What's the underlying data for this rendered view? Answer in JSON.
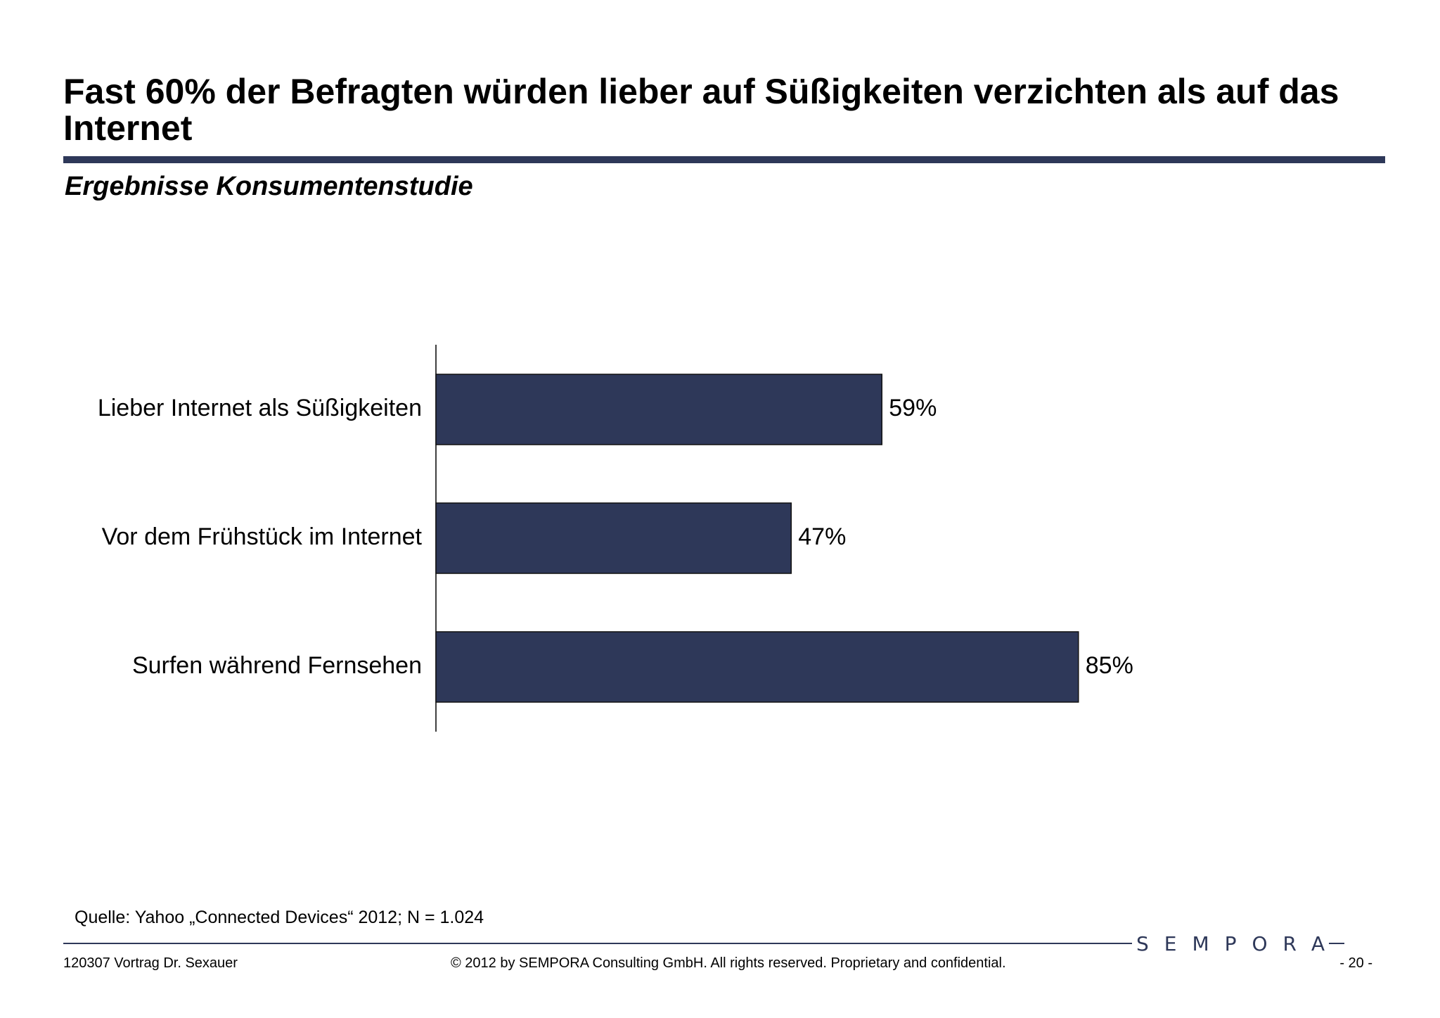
{
  "slide": {
    "title": "Fast 60% der Befragten würden lieber auf Süßigkeiten verzichten als auf das Internet",
    "subtitle": "Ergebnisse Konsumentenstudie",
    "source": "Quelle: Yahoo „Connected Devices“ 2012; N = 1.024"
  },
  "footer": {
    "left": "120307 Vortrag Dr. Sexauer",
    "center": "© 2012 by SEMPORA Consulting GmbH. All rights reserved. Proprietary and confidential.",
    "right": "- 20 -",
    "logo": "SEMPORA"
  },
  "colors": {
    "bar": "#2e3859",
    "rule": "#2e3859"
  },
  "chart_data": {
    "type": "bar",
    "orientation": "horizontal",
    "categories": [
      "Lieber Internet als Süßigkeiten",
      "Vor dem Frühstück im Internet",
      "Surfen während Fernsehen"
    ],
    "values": [
      59,
      47,
      85
    ],
    "value_labels": [
      "59%",
      "47%",
      "85%"
    ],
    "unit": "%",
    "xlim": [
      0,
      100
    ],
    "grid": false,
    "legend": "none"
  }
}
